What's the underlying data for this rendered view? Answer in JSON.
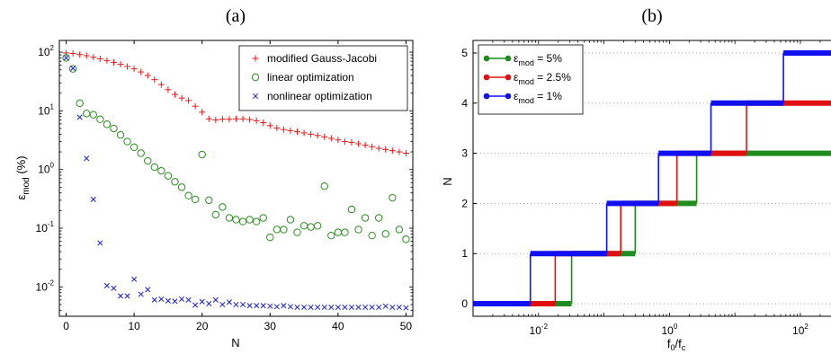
{
  "chart_data": [
    {
      "panel_label": "(a)",
      "type": "scatter",
      "xlabel": "N",
      "ylabel": {
        "base": "ε",
        "sub": "mod",
        "unit": " (%)"
      },
      "xlim": [
        -1,
        51
      ],
      "ylim_log10": [
        -2.5,
        2.2
      ],
      "yscale": "log",
      "x_ticks": [
        "0",
        "10",
        "20",
        "30",
        "40",
        "50"
      ],
      "x_tick_values": [
        0,
        10,
        20,
        30,
        40,
        50
      ],
      "y_ticks": [
        {
          "base": "10",
          "exp": "-2",
          "value": 0.01
        },
        {
          "base": "10",
          "exp": "-1",
          "value": 0.1
        },
        {
          "base": "10",
          "exp": "0",
          "value": 1
        },
        {
          "base": "10",
          "exp": "1",
          "value": 10
        },
        {
          "base": "10",
          "exp": "2",
          "value": 100
        }
      ],
      "legend_position": "top-right",
      "series": [
        {
          "name": "modified Gauss-Jacobi",
          "marker": "plus",
          "color": "#e8181c",
          "x": [
            0,
            1,
            2,
            3,
            4,
            5,
            6,
            7,
            8,
            9,
            10,
            11,
            12,
            13,
            14,
            15,
            16,
            17,
            18,
            19,
            20,
            21,
            22,
            23,
            24,
            25,
            26,
            27,
            28,
            29,
            30,
            31,
            32,
            33,
            34,
            35,
            36,
            37,
            38,
            39,
            40,
            41,
            42,
            43,
            44,
            45,
            46,
            47,
            48,
            49,
            50
          ],
          "values": [
            97,
            95,
            91,
            87,
            82,
            77,
            72,
            67,
            62,
            57,
            52,
            46,
            40,
            34,
            28,
            23,
            19,
            16.5,
            15,
            12,
            9.5,
            7.3,
            7.0,
            7.2,
            7.2,
            7.3,
            7.3,
            7.1,
            6.8,
            6.3,
            5.6,
            5.1,
            4.8,
            4.6,
            4.4,
            4.2,
            4.0,
            3.8,
            3.6,
            3.4,
            3.2,
            3.0,
            2.9,
            2.75,
            2.6,
            2.45,
            2.3,
            2.2,
            2.1,
            2.0,
            1.9
          ]
        },
        {
          "name": "linear optimization",
          "marker": "circle",
          "color": "#2e8b22",
          "x": [
            0,
            1,
            2,
            3,
            4,
            5,
            6,
            7,
            8,
            9,
            10,
            11,
            12,
            13,
            14,
            15,
            16,
            17,
            18,
            19,
            20,
            21,
            22,
            23,
            24,
            25,
            26,
            27,
            28,
            29,
            30,
            31,
            32,
            33,
            34,
            35,
            36,
            37,
            38,
            39,
            40,
            41,
            42,
            43,
            44,
            45,
            46,
            47,
            48,
            49,
            50
          ],
          "values": [
            80,
            52,
            13.5,
            9,
            8.6,
            7.2,
            5.9,
            5.0,
            3.9,
            3.0,
            2.4,
            1.9,
            1.4,
            1.1,
            0.95,
            0.78,
            0.62,
            0.5,
            0.36,
            0.31,
            1.8,
            0.3,
            0.17,
            0.23,
            0.15,
            0.14,
            0.13,
            0.14,
            0.13,
            0.15,
            0.07,
            0.095,
            0.095,
            0.14,
            0.085,
            0.11,
            0.105,
            0.11,
            0.52,
            0.075,
            0.085,
            0.085,
            0.21,
            0.095,
            0.15,
            0.075,
            0.15,
            0.08,
            0.33,
            0.095,
            0.065
          ]
        },
        {
          "name": "nonlinear optimization",
          "marker": "x",
          "color": "#1f1fcf",
          "x": [
            0,
            1,
            2,
            3,
            4,
            5,
            6,
            7,
            8,
            9,
            10,
            11,
            12,
            13,
            14,
            15,
            16,
            17,
            18,
            19,
            20,
            21,
            22,
            23,
            24,
            25,
            26,
            27,
            28,
            29,
            30,
            31,
            32,
            33,
            34,
            35,
            36,
            37,
            38,
            39,
            40,
            41,
            42,
            43,
            44,
            45,
            46,
            47,
            48,
            49,
            50
          ],
          "values": [
            80,
            53,
            7.8,
            1.55,
            0.31,
            0.056,
            0.0105,
            0.0095,
            0.007,
            0.007,
            0.0135,
            0.0075,
            0.009,
            0.006,
            0.0062,
            0.0058,
            0.0057,
            0.0062,
            0.006,
            0.0049,
            0.0056,
            0.0052,
            0.006,
            0.005,
            0.0055,
            0.005,
            0.005,
            0.0048,
            0.0048,
            0.0048,
            0.0047,
            0.0046,
            0.0048,
            0.0046,
            0.0045,
            0.0045,
            0.0045,
            0.0045,
            0.0045,
            0.0045,
            0.0045,
            0.0045,
            0.0045,
            0.0045,
            0.0045,
            0.0045,
            0.0045,
            0.0047,
            0.0045,
            0.0045,
            0.0044
          ]
        }
      ]
    },
    {
      "panel_label": "(b)",
      "type": "line",
      "xscale": "log",
      "xlabel": {
        "base": "f",
        "sub1": "0",
        "mid": "/f",
        "sub2": "c"
      },
      "ylabel": "N",
      "xlim_log10": [
        -3.0,
        2.55
      ],
      "ylim": [
        -0.25,
        5.25
      ],
      "x_ticks": [
        {
          "base": "10",
          "exp": "-2",
          "value": 0.01
        },
        {
          "base": "10",
          "exp": "0",
          "value": 1
        },
        {
          "base": "10",
          "exp": "2",
          "value": 100
        }
      ],
      "y_ticks": [
        "0",
        "1",
        "2",
        "3",
        "4",
        "5"
      ],
      "y_tick_values": [
        0,
        1,
        2,
        3,
        4,
        5
      ],
      "grid": "horizontal dotted",
      "legend_position": "top-left",
      "series": [
        {
          "name_base": "ε",
          "name_sub": "mod",
          "name_value": " = 5%",
          "color": "#1e8c1e",
          "steps": [
            {
              "n": 0,
              "x_start": 0.001,
              "x_end": 0.032
            },
            {
              "n": 1,
              "x_start": 0.032,
              "x_end": 0.3
            },
            {
              "n": 2,
              "x_start": 0.3,
              "x_end": 2.6
            },
            {
              "n": 3,
              "x_start": 2.6,
              "x_end": 350
            }
          ]
        },
        {
          "name_base": "ε",
          "name_sub": "mod",
          "name_value": " = 2.5%",
          "color": "#e01010",
          "steps": [
            {
              "n": 0,
              "x_start": 0.001,
              "x_end": 0.018
            },
            {
              "n": 1,
              "x_start": 0.018,
              "x_end": 0.18
            },
            {
              "n": 2,
              "x_start": 0.18,
              "x_end": 1.3
            },
            {
              "n": 3,
              "x_start": 1.3,
              "x_end": 15
            },
            {
              "n": 4,
              "x_start": 15,
              "x_end": 350
            }
          ]
        },
        {
          "name_base": "ε",
          "name_sub": "mod",
          "name_value": " = 1%",
          "color": "#1010f0",
          "steps": [
            {
              "n": 0,
              "x_start": 0.001,
              "x_end": 0.0075
            },
            {
              "n": 1,
              "x_start": 0.0075,
              "x_end": 0.11
            },
            {
              "n": 2,
              "x_start": 0.11,
              "x_end": 0.68
            },
            {
              "n": 3,
              "x_start": 0.68,
              "x_end": 4.3
            },
            {
              "n": 4,
              "x_start": 4.3,
              "x_end": 55
            },
            {
              "n": 5,
              "x_start": 55,
              "x_end": 350
            }
          ]
        }
      ]
    }
  ]
}
